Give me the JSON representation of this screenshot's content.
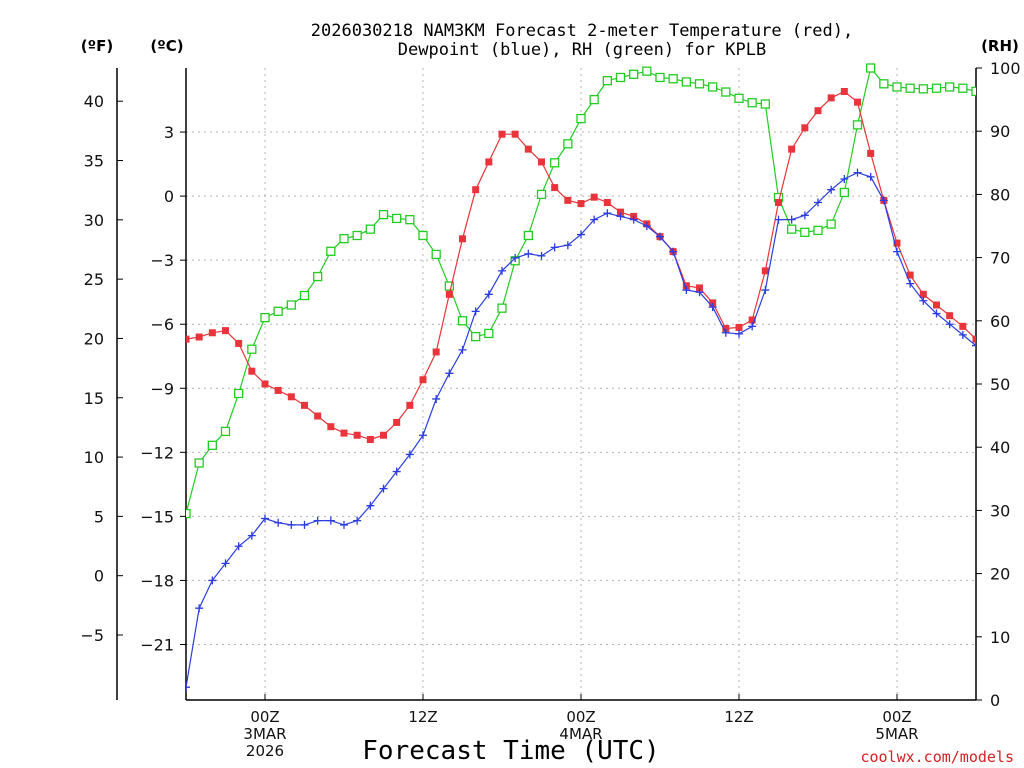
{
  "title_line1": "2026030218 NAM3KM Forecast 2-meter Temperature (red),",
  "title_line2": "Dewpoint (blue), RH (green) for KPLB",
  "unit_f": "(ºF)",
  "unit_c": "(ºC)",
  "unit_rh": "(RH)",
  "xlabel": "Forecast Time (UTC)",
  "credit": "coolwx.com/models",
  "colors": {
    "temp": "#e8343a",
    "dewpoint": "#2b3de0",
    "rh": "#22cc22",
    "grid": "#b4b4b4",
    "credit": "#d22222"
  },
  "chart_data": {
    "type": "line",
    "x_hours": [
      0,
      1,
      2,
      3,
      4,
      5,
      6,
      7,
      8,
      9,
      10,
      11,
      12,
      13,
      14,
      15,
      16,
      17,
      18,
      19,
      20,
      21,
      22,
      23,
      24,
      25,
      26,
      27,
      28,
      29,
      30,
      31,
      32,
      33,
      34,
      35,
      36,
      37,
      38,
      39,
      40,
      41,
      42,
      43,
      44,
      45,
      46,
      47,
      48,
      49,
      50,
      51,
      52,
      53,
      54,
      55,
      56,
      57,
      58,
      59,
      60
    ],
    "x_ticks": [
      {
        "hour": 6,
        "lines": [
          "00Z",
          "3MAR",
          "2026"
        ]
      },
      {
        "hour": 18,
        "lines": [
          "12Z"
        ]
      },
      {
        "hour": 30,
        "lines": [
          "00Z",
          "4MAR"
        ]
      },
      {
        "hour": 42,
        "lines": [
          "12Z"
        ]
      },
      {
        "hour": 54,
        "lines": [
          "00Z",
          "5MAR"
        ]
      }
    ],
    "celsius_ticks": [
      3,
      0,
      -3,
      -6,
      -9,
      -12,
      -15,
      -18,
      -21
    ],
    "fahrenheit_ticks": [
      40,
      35,
      30,
      25,
      20,
      15,
      10,
      5,
      0,
      -5
    ],
    "rh_ticks": [
      100,
      90,
      80,
      70,
      60,
      50,
      40,
      30,
      20,
      10,
      0
    ],
    "ylim_celsius": [
      -23.6,
      6.0
    ],
    "ylim_rh": [
      0,
      100
    ],
    "series": [
      {
        "name": "Temperature",
        "unit": "°C",
        "values": [
          -6.7,
          -6.6,
          -6.4,
          -6.3,
          -6.9,
          -8.2,
          -8.8,
          -9.1,
          -9.4,
          -9.8,
          -10.3,
          -10.8,
          -11.1,
          -11.2,
          -11.4,
          -11.2,
          -10.6,
          -9.8,
          -8.6,
          -7.3,
          -4.6,
          -2.0,
          0.3,
          1.6,
          2.9,
          2.9,
          2.2,
          1.6,
          0.4,
          -0.2,
          -0.35,
          -0.05,
          -0.3,
          -0.75,
          -0.95,
          -1.3,
          -1.9,
          -2.6,
          -4.2,
          -4.3,
          -5.0,
          -6.2,
          -6.15,
          -5.8,
          -3.5,
          -0.3,
          2.2,
          3.2,
          4.0,
          4.6,
          4.9,
          4.4,
          2.0,
          -0.2,
          -2.2,
          -3.7,
          -4.6,
          -5.1,
          -5.6,
          -6.1,
          -6.7
        ]
      },
      {
        "name": "Dewpoint",
        "unit": "°C",
        "values": [
          -23.0,
          -19.3,
          -18.0,
          -17.2,
          -16.4,
          -15.9,
          -15.1,
          -15.3,
          -15.4,
          -15.4,
          -15.2,
          -15.2,
          -15.4,
          -15.2,
          -14.5,
          -13.7,
          -12.9,
          -12.1,
          -11.2,
          -9.5,
          -8.3,
          -7.2,
          -5.4,
          -4.6,
          -3.5,
          -2.9,
          -2.7,
          -2.8,
          -2.4,
          -2.3,
          -1.8,
          -1.1,
          -0.8,
          -0.95,
          -1.1,
          -1.4,
          -1.9,
          -2.6,
          -4.4,
          -4.5,
          -5.2,
          -6.4,
          -6.45,
          -6.1,
          -4.4,
          -1.1,
          -1.1,
          -0.9,
          -0.3,
          0.3,
          0.8,
          1.1,
          0.9,
          -0.2,
          -2.6,
          -4.1,
          -4.9,
          -5.5,
          -6.0,
          -6.5,
          -7.0
        ]
      },
      {
        "name": "RH",
        "unit": "%",
        "values": [
          29.5,
          37.5,
          40.3,
          42.5,
          48.5,
          55.5,
          60.5,
          61.5,
          62.5,
          64,
          67,
          71,
          73,
          73.5,
          74.5,
          76.8,
          76.2,
          76,
          73.5,
          70.5,
          65.5,
          60,
          57.5,
          58,
          62,
          69.5,
          73.5,
          80,
          85,
          88,
          92,
          95,
          98,
          98.5,
          99,
          99.5,
          98.5,
          98.3,
          97.8,
          97.5,
          97,
          96.2,
          95.2,
          94.5,
          94.3,
          79.5,
          74.5,
          74,
          74.3,
          75.3,
          80.3,
          91,
          100,
          97.5,
          97,
          96.8,
          96.7,
          96.8,
          97,
          96.8,
          96.3
        ]
      }
    ]
  }
}
